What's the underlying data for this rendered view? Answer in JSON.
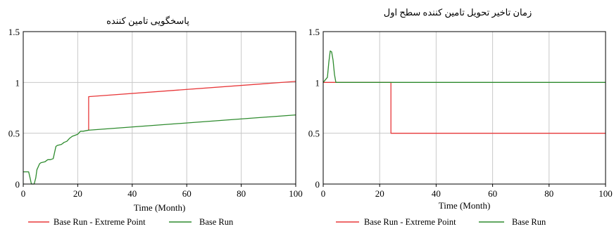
{
  "chart_data": [
    {
      "type": "line",
      "title": "پاسخگویی تامین کننده",
      "xlabel": "Time (Month)",
      "ylabel": "",
      "xlim": [
        0,
        100
      ],
      "ylim": [
        0,
        1.5
      ],
      "x_ticks": [
        "0",
        "20",
        "40",
        "60",
        "80",
        "100"
      ],
      "y_ticks": [
        "0",
        "0.5",
        "1",
        "1.5"
      ],
      "grid": true,
      "legend_position": "bottom",
      "series": [
        {
          "name": "Base Run - Extreme Point",
          "color": "#e8383a",
          "x": [
            24,
            24,
            100
          ],
          "y": [
            0.53,
            0.86,
            1.01
          ]
        },
        {
          "name": "Base Run",
          "color": "#2e8b2e",
          "x": [
            0,
            2,
            2.5,
            3,
            4,
            4.6,
            5,
            6,
            6.5,
            8,
            9,
            10,
            11,
            12,
            12.5,
            14,
            15,
            16,
            17,
            18,
            19,
            20,
            21,
            22,
            24,
            100
          ],
          "y": [
            0.12,
            0.12,
            0.06,
            0.0,
            0.0,
            0.06,
            0.14,
            0.2,
            0.21,
            0.22,
            0.24,
            0.24,
            0.25,
            0.37,
            0.38,
            0.39,
            0.41,
            0.42,
            0.45,
            0.47,
            0.48,
            0.49,
            0.52,
            0.52,
            0.53,
            0.68
          ]
        }
      ]
    },
    {
      "type": "line",
      "title": "زمان تاخیر تحویل تامین کننده سطح اول",
      "xlabel": "Time (Month)",
      "ylabel": "",
      "xlim": [
        0,
        100
      ],
      "ylim": [
        0,
        1.5
      ],
      "x_ticks": [
        "0",
        "20",
        "40",
        "60",
        "80",
        "100"
      ],
      "y_ticks": [
        "0",
        "0.5",
        "1",
        "1.5"
      ],
      "grid": true,
      "legend_position": "bottom",
      "series": [
        {
          "name": "Base Run - Extreme Point",
          "color": "#e8383a",
          "x": [
            0,
            24,
            24,
            100
          ],
          "y": [
            1.0,
            1.0,
            0.5,
            0.5
          ]
        },
        {
          "name": "Base Run",
          "color": "#2e8b2e",
          "x": [
            0,
            1.5,
            2,
            2.5,
            3,
            3.5,
            4,
            4.5,
            5,
            100
          ],
          "y": [
            1.0,
            1.05,
            1.2,
            1.31,
            1.3,
            1.22,
            1.08,
            1.0,
            1.0,
            1.0
          ]
        }
      ]
    }
  ]
}
